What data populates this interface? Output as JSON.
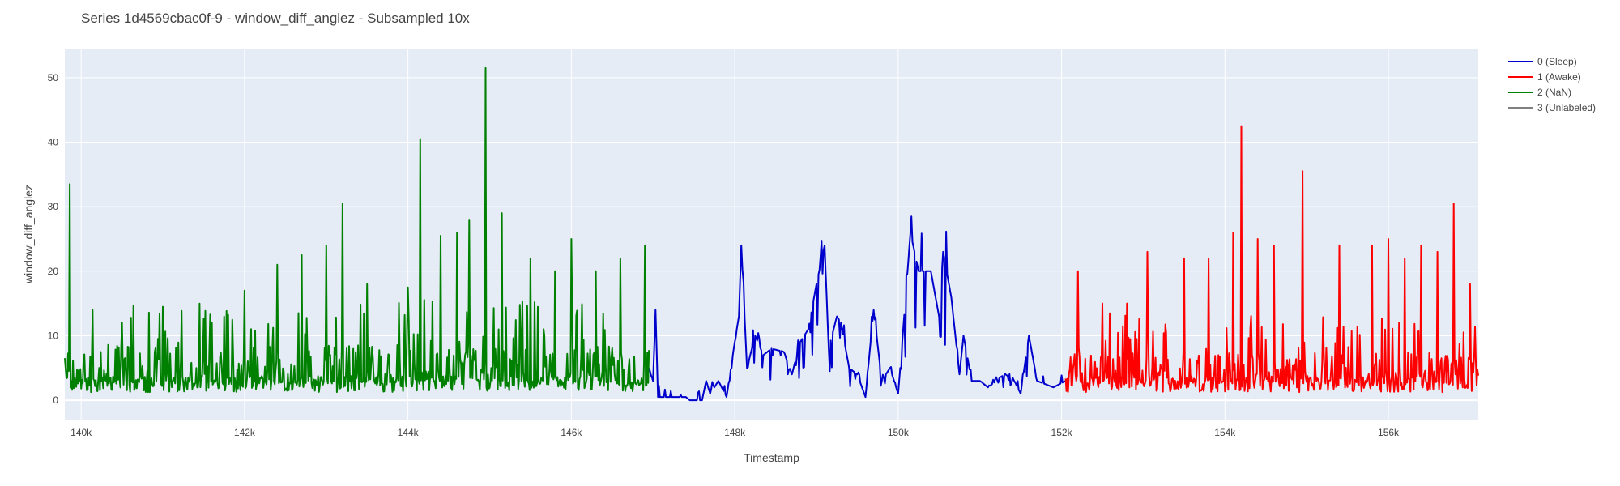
{
  "chart_data": {
    "type": "line",
    "title": "Series 1d4569cbac0f-9 - window_diff_anglez - Subsampled 10x",
    "xlabel": "Timestamp",
    "ylabel": "window_diff_anglez",
    "xlim": [
      139800,
      157100
    ],
    "ylim": [
      -3,
      54.5
    ],
    "x_ticks": [
      140000,
      142000,
      144000,
      146000,
      148000,
      150000,
      152000,
      154000,
      156000
    ],
    "x_tick_labels": [
      "140k",
      "142k",
      "144k",
      "146k",
      "148k",
      "150k",
      "152k",
      "154k",
      "156k"
    ],
    "y_ticks": [
      0,
      10,
      20,
      30,
      40,
      50
    ],
    "y_tick_labels": [
      "0",
      "10",
      "20",
      "30",
      "40",
      "50"
    ],
    "grid": true,
    "legend_position": "top-right",
    "series": [
      {
        "name": "0 (Sleep)",
        "color": "#0000cc",
        "x_start": 146950,
        "x_end": 152050,
        "keypoints": [
          [
            146950,
            5
          ],
          [
            147000,
            3
          ],
          [
            147030,
            14
          ],
          [
            147060,
            0.5
          ],
          [
            147400,
            0.5
          ],
          [
            147450,
            0
          ],
          [
            147600,
            0
          ],
          [
            147650,
            3
          ],
          [
            147700,
            1
          ],
          [
            147800,
            3
          ],
          [
            147900,
            0.5
          ],
          [
            148000,
            9
          ],
          [
            148050,
            13
          ],
          [
            148080,
            24
          ],
          [
            148150,
            5
          ],
          [
            148250,
            10
          ],
          [
            148350,
            7
          ],
          [
            148450,
            8
          ],
          [
            148600,
            7.5
          ],
          [
            148700,
            4
          ],
          [
            148800,
            9
          ],
          [
            148900,
            11
          ],
          [
            149000,
            18
          ],
          [
            149100,
            24
          ],
          [
            149150,
            8
          ],
          [
            149250,
            13
          ],
          [
            149300,
            12
          ],
          [
            149400,
            5
          ],
          [
            149500,
            4
          ],
          [
            149600,
            0.5
          ],
          [
            149700,
            14
          ],
          [
            149800,
            3
          ],
          [
            149900,
            5
          ],
          [
            150000,
            1
          ],
          [
            150050,
            9
          ],
          [
            150150,
            26
          ],
          [
            150250,
            20
          ],
          [
            150400,
            20
          ],
          [
            150500,
            13
          ],
          [
            150550,
            23
          ],
          [
            150650,
            16
          ],
          [
            150750,
            4
          ],
          [
            150800,
            10
          ],
          [
            150900,
            3
          ],
          [
            151000,
            3
          ],
          [
            151100,
            2
          ],
          [
            151300,
            4
          ],
          [
            151400,
            3.5
          ],
          [
            151500,
            1
          ],
          [
            151600,
            10
          ],
          [
            151700,
            3
          ],
          [
            151800,
            2.5
          ],
          [
            151900,
            2
          ],
          [
            152050,
            3
          ]
        ]
      },
      {
        "name": "1 (Awake)",
        "color": "#ff0000",
        "x_start": 152050,
        "x_end": 157100,
        "baseline": 2.5,
        "spread": 5,
        "peaks": [
          [
            152200,
            20
          ],
          [
            152500,
            15
          ],
          [
            152800,
            15
          ],
          [
            153050,
            23
          ],
          [
            153500,
            22
          ],
          [
            153800,
            22
          ],
          [
            154100,
            26
          ],
          [
            154200,
            42.5
          ],
          [
            154400,
            25
          ],
          [
            154600,
            24
          ],
          [
            154950,
            35.5
          ],
          [
            155400,
            24
          ],
          [
            155800,
            24
          ],
          [
            156000,
            25
          ],
          [
            156200,
            22
          ],
          [
            156400,
            24
          ],
          [
            156600,
            23
          ],
          [
            156800,
            30.5
          ],
          [
            157000,
            18
          ]
        ]
      },
      {
        "name": "2 (NaN)",
        "color": "#008000",
        "x_start": 139800,
        "x_end": 146950,
        "baseline": 2.5,
        "spread": 6,
        "peaks": [
          [
            139860,
            33.5
          ],
          [
            140500,
            12
          ],
          [
            141000,
            14.5
          ],
          [
            141600,
            12
          ],
          [
            142000,
            17
          ],
          [
            142400,
            21
          ],
          [
            142700,
            22.5
          ],
          [
            143000,
            24
          ],
          [
            143200,
            30.5
          ],
          [
            143500,
            18
          ],
          [
            144000,
            17.5
          ],
          [
            144150,
            40.5
          ],
          [
            144400,
            25.5
          ],
          [
            144600,
            26
          ],
          [
            144750,
            28
          ],
          [
            144950,
            51.5
          ],
          [
            145150,
            29
          ],
          [
            145500,
            22
          ],
          [
            145800,
            20
          ],
          [
            146000,
            25
          ],
          [
            146300,
            20
          ],
          [
            146600,
            22
          ],
          [
            146900,
            24
          ]
        ]
      },
      {
        "name": "3 (Unlabeled)",
        "color": "#808080",
        "x_start": null,
        "x_end": null,
        "keypoints": []
      }
    ]
  }
}
